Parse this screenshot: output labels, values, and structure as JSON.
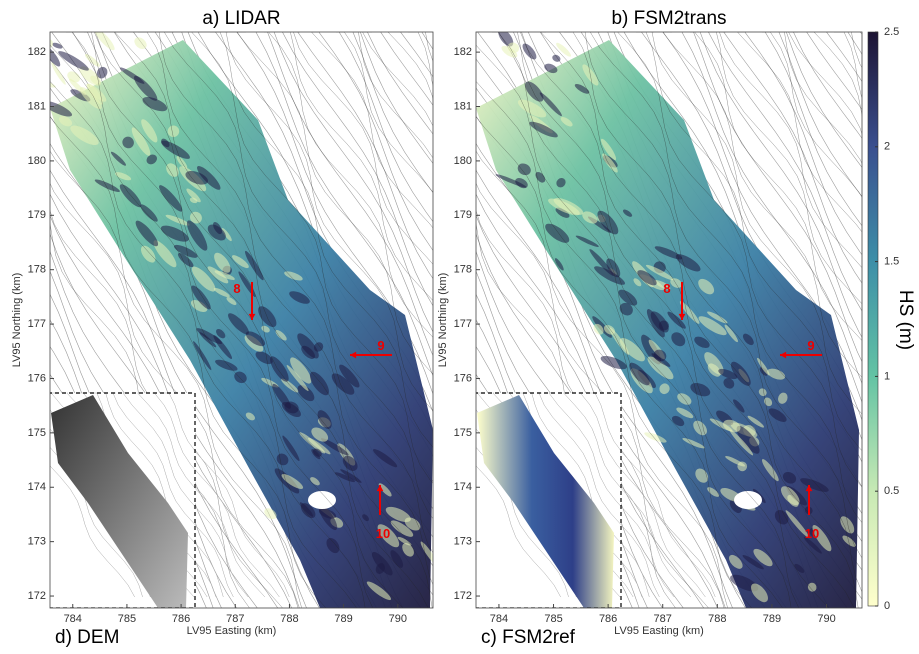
{
  "panels": [
    {
      "title": "a) LIDAR",
      "markers": [
        "8",
        "9",
        "10"
      ]
    },
    {
      "title": "b) FSM2trans",
      "markers": [
        "8",
        "9",
        "10"
      ]
    }
  ],
  "x_axis": {
    "label": "LV95 Easting (km)",
    "lim": [
      783.58,
      790.65
    ],
    "ticks": [
      784,
      785,
      786,
      787,
      788,
      789,
      790
    ]
  },
  "y_axis": {
    "label": "LV95 Northing (km)",
    "lim": [
      171.78,
      182.37
    ],
    "ticks": [
      172,
      173,
      174,
      175,
      176,
      177,
      178,
      179,
      180,
      181,
      182
    ]
  },
  "insets": [
    {
      "label": "d) DEM"
    },
    {
      "label": "c) FSM2ref"
    }
  ],
  "colorbar": {
    "label": "HS (m)",
    "lim": [
      0,
      2.5
    ],
    "ticks": [
      0,
      0.5,
      1,
      1.5,
      2,
      2.5
    ]
  }
}
